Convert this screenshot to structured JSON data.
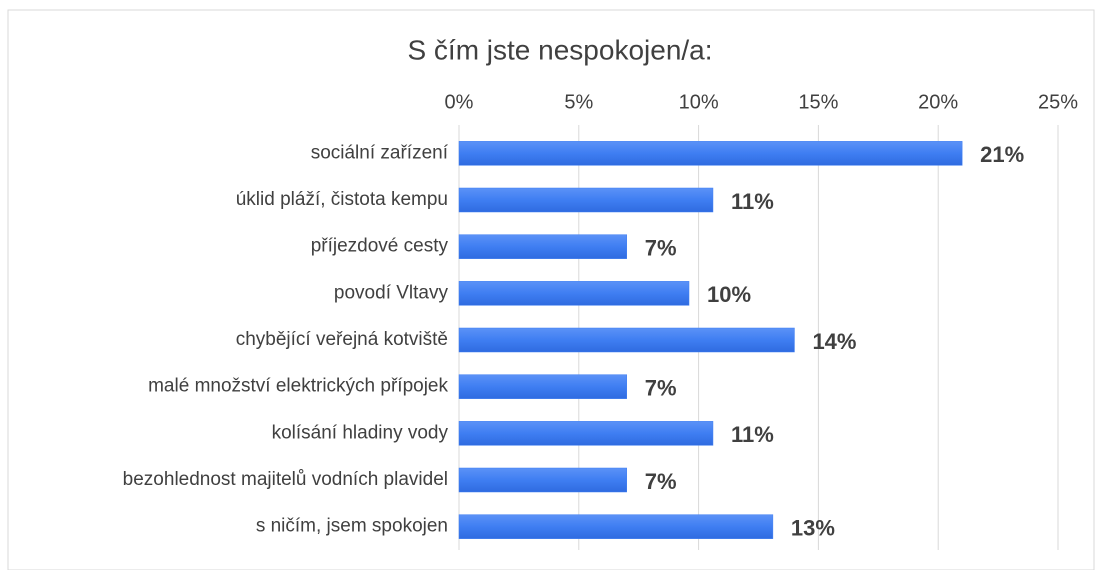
{
  "chart_data": {
    "type": "hbar",
    "title": "S čím jste nespokojen/a:",
    "categories": [
      "sociální zařízení",
      "úklid pláží, čistota kempu",
      "příjezdové cesty",
      "povodí Vltavy",
      "chybějící veřejná kotviště",
      "malé množství elektrických přípojek",
      "kolísání hladiny vody",
      "bezohlednost majitelů vodních plavidel",
      "s ničím, jsem spokojen"
    ],
    "values": [
      21,
      10.6,
      7,
      9.6,
      14,
      7,
      10.6,
      7,
      13.1
    ],
    "value_labels": [
      "21%",
      "11%",
      "7%",
      "10%",
      "14%",
      "7%",
      "11%",
      "7%",
      "13%"
    ],
    "color": "#3f7ef2",
    "xlim": [
      0,
      25
    ],
    "xticks": [
      {
        "value": 0,
        "label": "0%"
      },
      {
        "value": 5,
        "label": "5%"
      },
      {
        "value": 10,
        "label": "10%"
      },
      {
        "value": 15,
        "label": "15%"
      },
      {
        "value": 20,
        "label": "20%"
      },
      {
        "value": 25,
        "label": "25%"
      }
    ],
    "grid": true
  }
}
